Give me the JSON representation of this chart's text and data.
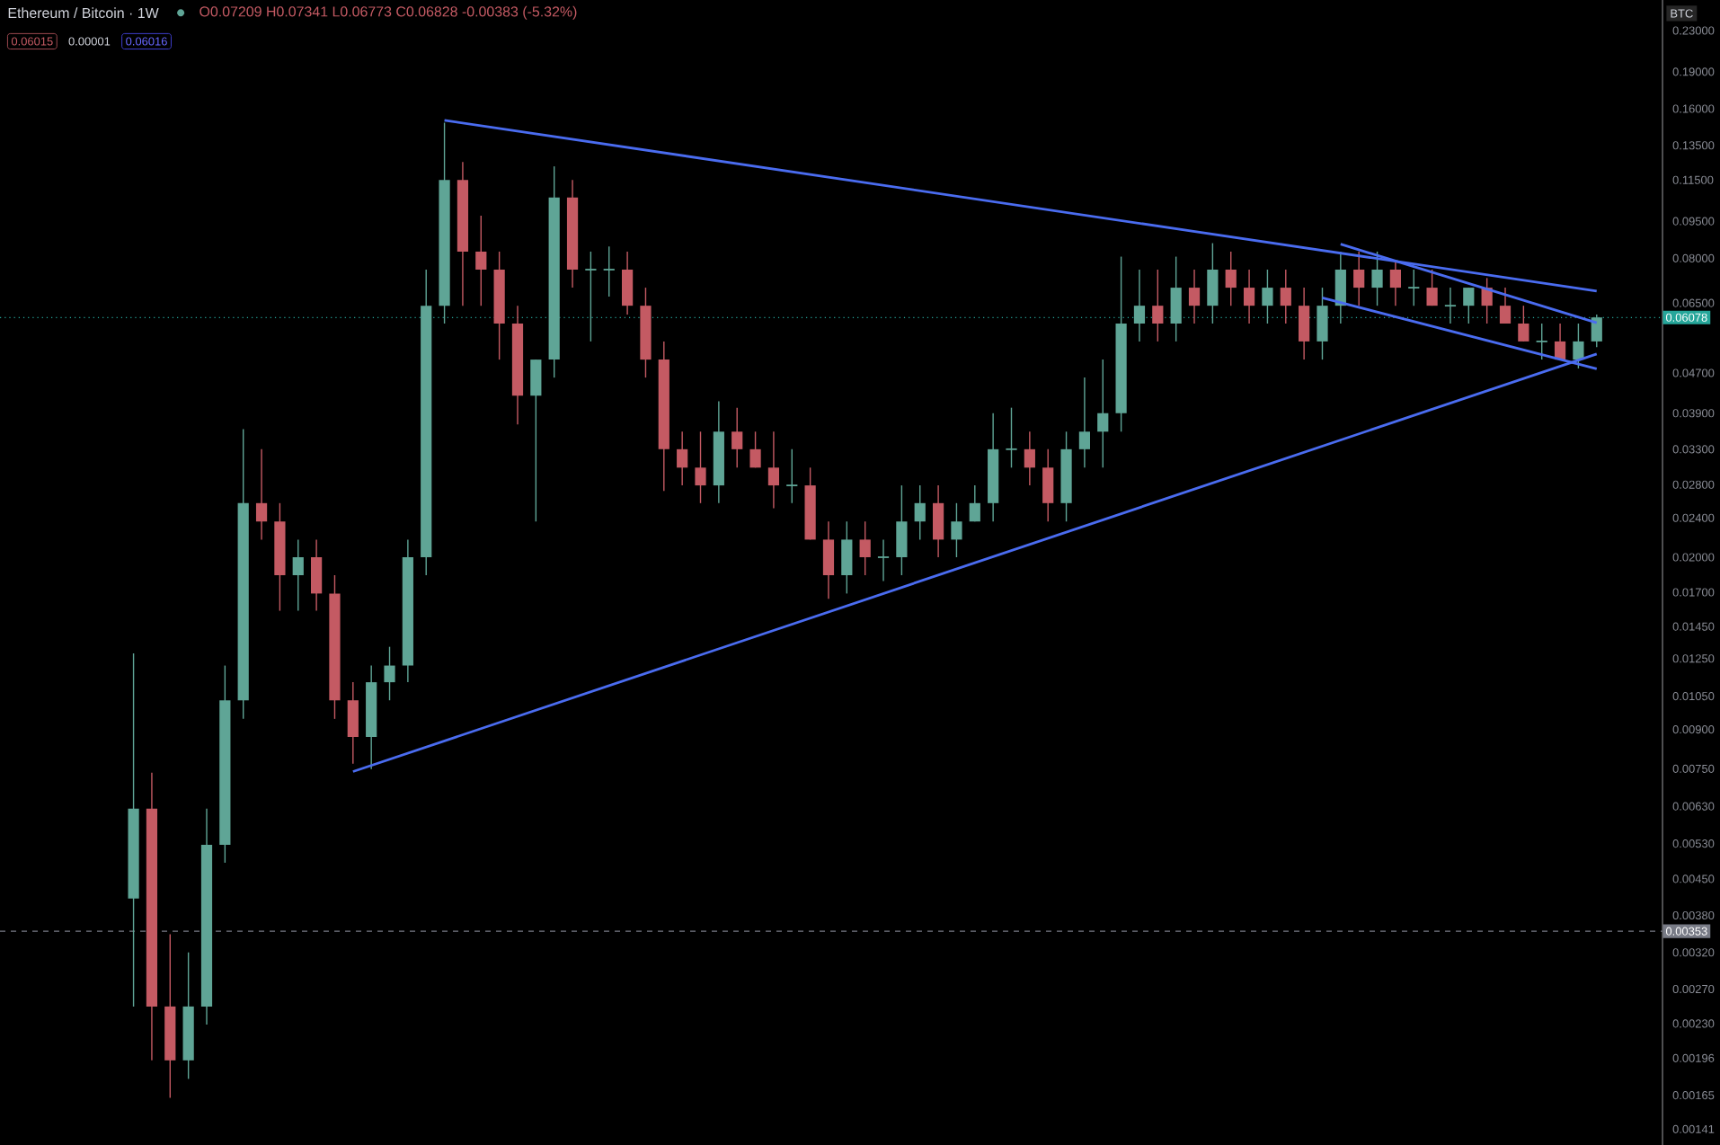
{
  "chart_data": {
    "type": "candlestick",
    "title": "Ethereum / Bitcoin · 1W",
    "annotations": [
      "O0.07209 H0.07341 L0.06773 C0.06828 -0.00383 (-5.32%)",
      "0.06015",
      "0.00001",
      "0.06016",
      "BTC"
    ],
    "categories": [
      null,
      null,
      null,
      null,
      null,
      null,
      null,
      null,
      null,
      null,
      null,
      null,
      null,
      null,
      null,
      null,
      null,
      null,
      null,
      null,
      null,
      null,
      null,
      null,
      null,
      null,
      null,
      null,
      null,
      null,
      null,
      null,
      null,
      null,
      null,
      null,
      null,
      null,
      null,
      null,
      null,
      null,
      null,
      null,
      null,
      null,
      null,
      null,
      null,
      null,
      null,
      null,
      null,
      null,
      null,
      null,
      null,
      null,
      null,
      null,
      null,
      null,
      null,
      null,
      null,
      null,
      null,
      null,
      null,
      null,
      null,
      null,
      null,
      null,
      null,
      null,
      null,
      null,
      null,
      null,
      null
    ],
    "ohlc": [
      [
        0.00411,
        0.0128,
        0.00249,
        0.00623
      ],
      [
        0.00623,
        0.00736,
        0.00194,
        0.00249
      ],
      [
        0.00249,
        0.00348,
        0.00163,
        0.00194
      ],
      [
        0.00194,
        0.0032,
        0.00178,
        0.00249
      ],
      [
        0.00249,
        0.00623,
        0.00229,
        0.00527
      ],
      [
        0.00527,
        0.0121,
        0.00485,
        0.0103
      ],
      [
        0.0103,
        0.0362,
        0.00945,
        0.0257
      ],
      [
        0.0257,
        0.033,
        0.0217,
        0.0236
      ],
      [
        0.0236,
        0.0257,
        0.0156,
        0.0184
      ],
      [
        0.0184,
        0.0217,
        0.0156,
        0.02
      ],
      [
        0.02,
        0.0217,
        0.0156,
        0.0169
      ],
      [
        0.0169,
        0.0184,
        0.00945,
        0.0103
      ],
      [
        0.0103,
        0.0112,
        0.00768,
        0.00869
      ],
      [
        0.00869,
        0.0121,
        0.00749,
        0.0112
      ],
      [
        0.0112,
        0.0132,
        0.0103,
        0.0121
      ],
      [
        0.0121,
        0.0217,
        0.0112,
        0.02
      ],
      [
        0.02,
        0.0759,
        0.0184,
        0.0642
      ],
      [
        0.0642,
        0.15,
        0.0591,
        0.115
      ],
      [
        0.115,
        0.125,
        0.0642,
        0.0825
      ],
      [
        0.0825,
        0.0974,
        0.0642,
        0.0759
      ],
      [
        0.0759,
        0.0825,
        0.05,
        0.0591
      ],
      [
        0.0591,
        0.0642,
        0.037,
        0.0423
      ],
      [
        0.0423,
        0.05,
        0.0236,
        0.05
      ],
      [
        0.05,
        0.1225,
        0.046,
        0.106
      ],
      [
        0.106,
        0.115,
        0.0698,
        0.0759
      ],
      [
        0.0759,
        0.0825,
        0.0544,
        0.0759
      ],
      [
        0.0759,
        0.0845,
        0.067,
        0.0759
      ],
      [
        0.0759,
        0.0825,
        0.0616,
        0.0642
      ],
      [
        0.0642,
        0.0698,
        0.046,
        0.05
      ],
      [
        0.05,
        0.0544,
        0.0272,
        0.033
      ],
      [
        0.033,
        0.0358,
        0.0279,
        0.0303
      ],
      [
        0.0303,
        0.0358,
        0.0257,
        0.0279
      ],
      [
        0.0279,
        0.0412,
        0.0257,
        0.0358
      ],
      [
        0.0358,
        0.04,
        0.0303,
        0.033
      ],
      [
        0.033,
        0.0358,
        0.0303,
        0.0303
      ],
      [
        0.0303,
        0.0358,
        0.0251,
        0.0279
      ],
      [
        0.0279,
        0.033,
        0.0257,
        0.0279
      ],
      [
        0.0279,
        0.0303,
        0.0217,
        0.0217
      ],
      [
        0.0217,
        0.0236,
        0.0165,
        0.0184
      ],
      [
        0.0184,
        0.0236,
        0.0169,
        0.0217
      ],
      [
        0.0217,
        0.0236,
        0.0184,
        0.02
      ],
      [
        0.02,
        0.0217,
        0.0179,
        0.02
      ],
      [
        0.02,
        0.0279,
        0.0184,
        0.0236
      ],
      [
        0.0236,
        0.0279,
        0.0217,
        0.0257
      ],
      [
        0.0257,
        0.0279,
        0.02,
        0.0217
      ],
      [
        0.0217,
        0.0257,
        0.02,
        0.0236
      ],
      [
        0.0236,
        0.0279,
        0.0236,
        0.0257
      ],
      [
        0.0257,
        0.039,
        0.0236,
        0.033
      ],
      [
        0.033,
        0.04,
        0.0303,
        0.033
      ],
      [
        0.033,
        0.0358,
        0.0279,
        0.0303
      ],
      [
        0.0303,
        0.033,
        0.0236,
        0.0257
      ],
      [
        0.0257,
        0.0358,
        0.0236,
        0.033
      ],
      [
        0.033,
        0.046,
        0.0303,
        0.0358
      ],
      [
        0.0358,
        0.05,
        0.0303,
        0.039
      ],
      [
        0.039,
        0.0806,
        0.0358,
        0.0591
      ],
      [
        0.0591,
        0.0759,
        0.0544,
        0.0642
      ],
      [
        0.0642,
        0.0759,
        0.0544,
        0.0591
      ],
      [
        0.0591,
        0.0806,
        0.0544,
        0.0698
      ],
      [
        0.0698,
        0.0759,
        0.0591,
        0.0642
      ],
      [
        0.0642,
        0.0858,
        0.0591,
        0.0759
      ],
      [
        0.0759,
        0.0825,
        0.0642,
        0.0698
      ],
      [
        0.0698,
        0.0759,
        0.0591,
        0.0642
      ],
      [
        0.0642,
        0.0759,
        0.0591,
        0.0698
      ],
      [
        0.0698,
        0.0759,
        0.0591,
        0.0642
      ],
      [
        0.0642,
        0.0698,
        0.05,
        0.0544
      ],
      [
        0.0544,
        0.0698,
        0.05,
        0.0642
      ],
      [
        0.0642,
        0.0825,
        0.0591,
        0.0759
      ],
      [
        0.0759,
        0.0825,
        0.0642,
        0.0698
      ],
      [
        0.0698,
        0.0825,
        0.0642,
        0.0759
      ],
      [
        0.0759,
        0.079,
        0.0642,
        0.0698
      ],
      [
        0.0698,
        0.0759,
        0.0642,
        0.0698
      ],
      [
        0.0698,
        0.0759,
        0.0642,
        0.0642
      ],
      [
        0.0642,
        0.0698,
        0.0591,
        0.0642
      ],
      [
        0.0642,
        0.0698,
        0.0591,
        0.0698
      ],
      [
        0.0698,
        0.073,
        0.0591,
        0.0642
      ],
      [
        0.0642,
        0.0698,
        0.0591,
        0.0591
      ],
      [
        0.0591,
        0.0642,
        0.0544,
        0.0544
      ],
      [
        0.0544,
        0.0591,
        0.05,
        0.0544
      ],
      [
        0.0544,
        0.0591,
        0.05,
        0.05
      ],
      [
        0.05,
        0.0591,
        0.048,
        0.0544
      ],
      [
        0.0544,
        0.0616,
        0.053,
        0.0608
      ]
    ],
    "series": [
      {
        "type": "line",
        "color": "#4a6cf0",
        "values": [
          null,
          null,
          null,
          null,
          null,
          null,
          null,
          null,
          null,
          null,
          null,
          null,
          null,
          null,
          null,
          null,
          null,
          0.1517,
          null,
          null,
          null,
          null,
          null,
          null,
          null,
          null,
          null,
          null,
          null,
          null,
          null,
          null,
          null,
          null,
          null,
          null,
          null,
          null,
          null,
          null,
          null,
          null,
          null,
          null,
          null,
          null,
          null,
          null,
          null,
          null,
          null,
          null,
          null,
          null,
          null,
          null,
          null,
          null,
          null,
          null,
          null,
          null,
          null,
          null,
          null,
          null,
          null,
          null,
          null,
          null,
          null,
          null,
          null,
          null,
          null,
          null,
          null,
          null,
          null,
          null,
          0.0687
        ]
      },
      {
        "type": "line",
        "color": "#4a6cf0",
        "values": [
          null,
          null,
          null,
          null,
          null,
          null,
          null,
          null,
          null,
          null,
          null,
          null,
          0.0074,
          null,
          null,
          null,
          null,
          null,
          null,
          null,
          null,
          null,
          null,
          null,
          null,
          null,
          null,
          null,
          null,
          null,
          null,
          null,
          null,
          null,
          null,
          null,
          null,
          null,
          null,
          null,
          null,
          null,
          null,
          null,
          null,
          null,
          null,
          null,
          null,
          null,
          null,
          null,
          null,
          null,
          null,
          null,
          null,
          null,
          null,
          null,
          null,
          null,
          null,
          null,
          null,
          null,
          null,
          null,
          null,
          null,
          null,
          null,
          null,
          null,
          null,
          null,
          null,
          null,
          null,
          null,
          0.0513
        ]
      },
      {
        "type": "line",
        "color": "#4a6cf0",
        "values": [
          null,
          null,
          null,
          null,
          null,
          null,
          null,
          null,
          null,
          null,
          null,
          null,
          null,
          null,
          null,
          null,
          null,
          null,
          null,
          null,
          null,
          null,
          null,
          null,
          null,
          null,
          null,
          null,
          null,
          null,
          null,
          null,
          null,
          null,
          null,
          null,
          null,
          null,
          null,
          null,
          null,
          null,
          null,
          null,
          null,
          null,
          null,
          null,
          null,
          null,
          null,
          null,
          null,
          null,
          null,
          null,
          null,
          null,
          null,
          null,
          null,
          null,
          null,
          null,
          null,
          null,
          0.0854,
          null,
          null,
          null,
          null,
          null,
          null,
          null,
          null,
          null,
          null,
          null,
          null,
          null,
          0.0593
        ]
      },
      {
        "type": "line",
        "color": "#4a6cf0",
        "values": [
          null,
          null,
          null,
          null,
          null,
          null,
          null,
          null,
          null,
          null,
          null,
          null,
          null,
          null,
          null,
          null,
          null,
          null,
          null,
          null,
          null,
          null,
          null,
          null,
          null,
          null,
          null,
          null,
          null,
          null,
          null,
          null,
          null,
          null,
          null,
          null,
          null,
          null,
          null,
          null,
          null,
          null,
          null,
          null,
          null,
          null,
          null,
          null,
          null,
          null,
          null,
          null,
          null,
          null,
          null,
          null,
          null,
          null,
          null,
          null,
          null,
          null,
          null,
          null,
          null,
          0.0666,
          null,
          null,
          null,
          null,
          null,
          null,
          null,
          null,
          null,
          null,
          null,
          null,
          null,
          null,
          0.0479
        ]
      }
    ],
    "log": "y",
    "ylim": [
      0.00131,
      0.265
    ],
    "yticks": [
      {
        "value": 0.23,
        "label": "0.23000"
      },
      {
        "value": 0.19,
        "label": "0.19000"
      },
      {
        "value": 0.16,
        "label": "0.16000"
      },
      {
        "value": 0.135,
        "label": "0.13500"
      },
      {
        "value": 0.115,
        "label": "0.11500"
      },
      {
        "value": 0.095,
        "label": "0.09500"
      },
      {
        "value": 0.08,
        "label": "0.08000"
      },
      {
        "value": 0.065,
        "label": "0.06500"
      },
      {
        "value": 0.047,
        "label": "0.04700"
      },
      {
        "value": 0.039,
        "label": "0.03900"
      },
      {
        "value": 0.033,
        "label": "0.03300"
      },
      {
        "value": 0.028,
        "label": "0.02800"
      },
      {
        "value": 0.024,
        "label": "0.02400"
      },
      {
        "value": 0.02,
        "label": "0.02000"
      },
      {
        "value": 0.017,
        "label": "0.01700"
      },
      {
        "value": 0.0145,
        "label": "0.01450"
      },
      {
        "value": 0.0125,
        "label": "0.01250"
      },
      {
        "value": 0.0105,
        "label": "0.01050"
      },
      {
        "value": 0.009,
        "label": "0.00900"
      },
      {
        "value": 0.0075,
        "label": "0.00750"
      },
      {
        "value": 0.0063,
        "label": "0.00630"
      },
      {
        "value": 0.0053,
        "label": "0.00530"
      },
      {
        "value": 0.0045,
        "label": "0.00450"
      },
      {
        "value": 0.0038,
        "label": "0.00380"
      },
      {
        "value": 0.0032,
        "label": "0.00320"
      },
      {
        "value": 0.0027,
        "label": "0.00270"
      },
      {
        "value": 0.0023,
        "label": "0.00230"
      },
      {
        "value": 0.00196,
        "label": "0.00196"
      },
      {
        "value": 0.00165,
        "label": "0.00165"
      },
      {
        "value": 0.00141,
        "label": "0.00141"
      }
    ],
    "ref_lines": [
      {
        "axis": "y",
        "value": 0.06078,
        "label": "0.06078",
        "color": "#26a69a",
        "line_style": "dotted"
      },
      {
        "axis": "y",
        "value": 0.00353,
        "label": "0.00353",
        "color": "#787b86",
        "line_style": "dashed"
      }
    ],
    "tick_labels": "y",
    "grid": false
  }
}
